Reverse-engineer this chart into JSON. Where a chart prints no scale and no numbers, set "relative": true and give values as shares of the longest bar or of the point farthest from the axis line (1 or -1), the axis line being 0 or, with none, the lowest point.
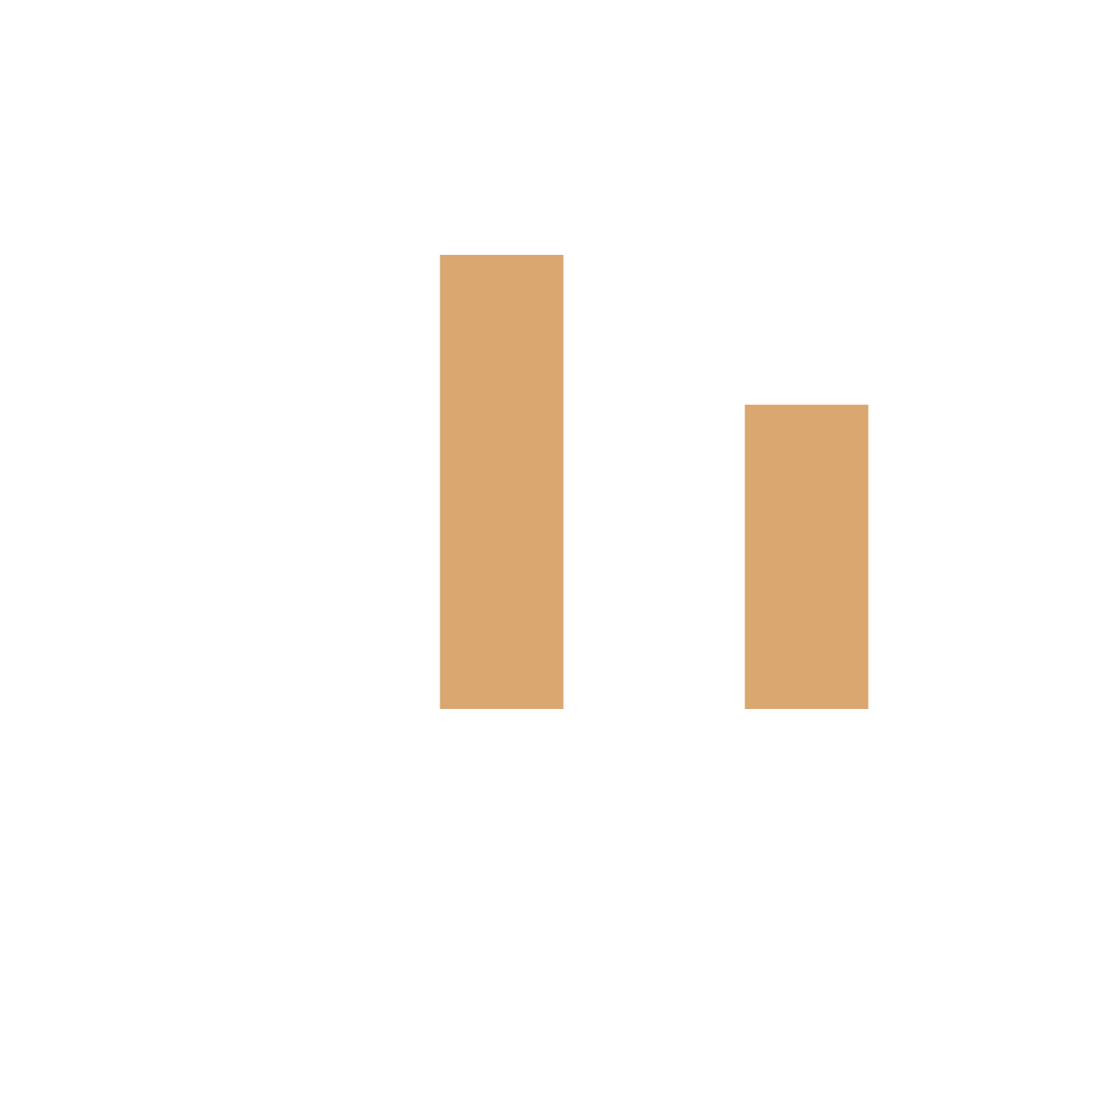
{
  "chart_data": {
    "type": "bar",
    "relative": true,
    "categories": [
      null,
      null
    ],
    "values": [
      1,
      0.67
    ],
    "color": "#d9a76f",
    "legend": false
  }
}
